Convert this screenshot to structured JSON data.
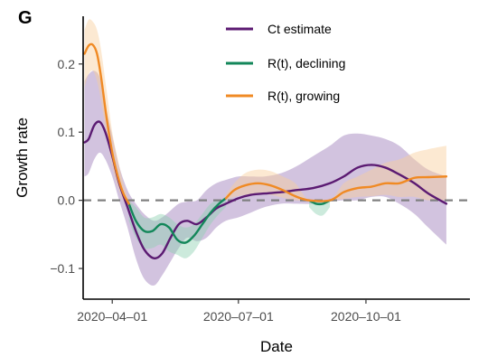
{
  "panel_label": "G",
  "chart_data": {
    "type": "line",
    "title": "",
    "xlabel": "Date",
    "ylabel": "Growth rate",
    "x_ticks": [
      "2020-04-01",
      "2020-07-01",
      "2020-10-01"
    ],
    "x_tick_labels": [
      "2020–04–01",
      "2020–07–01",
      "2020–10–01"
    ],
    "y_ticks": [
      -0.1,
      0.0,
      0.1,
      0.2
    ],
    "y_tick_labels": [
      "−0.1",
      "0.0",
      "0.1",
      "0.2"
    ],
    "xlim": [
      "2020-03-11",
      "2020-12-15"
    ],
    "ylim": [
      -0.145,
      0.27
    ],
    "reference_line": {
      "y": 0,
      "style": "dashed",
      "color": "#808080"
    },
    "grid": false,
    "legend_position": "top",
    "series": [
      {
        "name": "Ct estimate",
        "color": "#5b1a72",
        "band_color": "#9b7bb8",
        "x": [
          "2020-03-12",
          "2020-03-15",
          "2020-03-19",
          "2020-03-23",
          "2020-03-27",
          "2020-04-01",
          "2020-04-06",
          "2020-04-12",
          "2020-04-18",
          "2020-04-24",
          "2020-05-01",
          "2020-05-07",
          "2020-05-13",
          "2020-05-19",
          "2020-05-25",
          "2020-06-01",
          "2020-06-08",
          "2020-06-15",
          "2020-06-22",
          "2020-07-01",
          "2020-07-10",
          "2020-07-20",
          "2020-08-01",
          "2020-08-12",
          "2020-08-24",
          "2020-09-05",
          "2020-09-15",
          "2020-09-25",
          "2020-10-05",
          "2020-10-15",
          "2020-10-25",
          "2020-11-05",
          "2020-11-15",
          "2020-11-28"
        ],
        "y": [
          0.085,
          0.09,
          0.11,
          0.115,
          0.1,
          0.065,
          0.025,
          -0.01,
          -0.045,
          -0.072,
          -0.085,
          -0.078,
          -0.055,
          -0.035,
          -0.03,
          -0.035,
          -0.025,
          -0.012,
          -0.005,
          0.003,
          0.008,
          0.01,
          0.012,
          0.015,
          0.018,
          0.025,
          0.035,
          0.048,
          0.052,
          0.048,
          0.038,
          0.025,
          0.01,
          -0.005
        ],
        "lower": [
          0.035,
          0.04,
          0.06,
          0.07,
          0.06,
          0.035,
          0.0,
          -0.04,
          -0.085,
          -0.115,
          -0.125,
          -0.11,
          -0.09,
          -0.07,
          -0.055,
          -0.06,
          -0.055,
          -0.04,
          -0.03,
          -0.025,
          -0.018,
          -0.01,
          -0.005,
          -0.005,
          -0.005,
          -0.002,
          0.0,
          0.0,
          0.005,
          0.005,
          -0.005,
          -0.02,
          -0.04,
          -0.065
        ],
        "upper": [
          0.175,
          0.185,
          0.19,
          0.18,
          0.14,
          0.095,
          0.05,
          0.015,
          -0.005,
          -0.02,
          -0.03,
          -0.025,
          -0.015,
          -0.005,
          -0.002,
          0.0,
          0.015,
          0.025,
          0.03,
          0.035,
          0.035,
          0.035,
          0.04,
          0.05,
          0.065,
          0.08,
          0.095,
          0.098,
          0.095,
          0.09,
          0.08,
          0.06,
          0.045,
          0.035
        ]
      },
      {
        "name": "R(t), declining",
        "color": "#13875a",
        "band_color": "#8ed1b1",
        "x": [
          "2020-04-13",
          "2020-04-18",
          "2020-04-24",
          "2020-04-30",
          "2020-05-06",
          "2020-05-12",
          "2020-05-18",
          "2020-05-24",
          "2020-05-30",
          "2020-06-05",
          "2020-06-11",
          "2020-06-17",
          "2020-06-22",
          "2020-08-21",
          "2020-08-26",
          "2020-08-31",
          "2020-09-05"
        ],
        "y": [
          -0.005,
          -0.03,
          -0.045,
          -0.045,
          -0.035,
          -0.04,
          -0.058,
          -0.062,
          -0.052,
          -0.035,
          -0.018,
          -0.005,
          0.003,
          0.0,
          -0.005,
          -0.005,
          0.0
        ],
        "lower": [
          -0.03,
          -0.055,
          -0.07,
          -0.07,
          -0.065,
          -0.075,
          -0.08,
          -0.085,
          -0.075,
          -0.055,
          -0.035,
          -0.02,
          -0.01,
          -0.01,
          -0.02,
          -0.022,
          -0.01
        ],
        "upper": [
          0.0,
          -0.01,
          -0.025,
          -0.025,
          -0.02,
          -0.025,
          -0.035,
          -0.04,
          -0.035,
          -0.02,
          -0.005,
          0.0,
          0.005,
          0.0,
          0.0,
          0.0,
          0.0
        ]
      },
      {
        "name": "R(t), growing",
        "color": "#f08a24",
        "band_color": "#f9cf9b",
        "x": [
          "2020-03-12",
          "2020-03-15",
          "2020-03-18",
          "2020-03-21",
          "2020-03-24",
          "2020-03-28",
          "2020-04-01",
          "2020-04-05",
          "2020-04-09",
          "2020-04-13",
          "2020-06-22",
          "2020-06-28",
          "2020-07-06",
          "2020-07-15",
          "2020-07-24",
          "2020-08-02",
          "2020-08-11",
          "2020-08-21",
          "2020-09-05",
          "2020-09-15",
          "2020-09-25",
          "2020-10-05",
          "2020-10-15",
          "2020-10-25",
          "2020-11-05",
          "2020-11-15",
          "2020-11-28"
        ],
        "y": [
          0.215,
          0.227,
          0.228,
          0.215,
          0.18,
          0.12,
          0.07,
          0.035,
          0.01,
          -0.005,
          0.003,
          0.015,
          0.022,
          0.025,
          0.022,
          0.015,
          0.006,
          0.0,
          0.0,
          0.012,
          0.018,
          0.02,
          0.025,
          0.025,
          0.033,
          0.034,
          0.035
        ],
        "lower": [
          0.165,
          0.185,
          0.19,
          0.175,
          0.145,
          0.095,
          0.05,
          0.02,
          0.0,
          -0.01,
          0.0,
          0.005,
          0.008,
          0.01,
          0.008,
          0.004,
          0.0,
          0.0,
          0.0,
          0.002,
          0.005,
          0.006,
          0.008,
          0.005,
          0.005,
          0.0,
          0.0
        ],
        "upper": [
          0.25,
          0.265,
          0.262,
          0.25,
          0.22,
          0.16,
          0.1,
          0.06,
          0.025,
          0.0,
          0.008,
          0.025,
          0.04,
          0.045,
          0.043,
          0.035,
          0.025,
          0.0,
          0.0,
          0.025,
          0.035,
          0.045,
          0.055,
          0.06,
          0.07,
          0.075,
          0.08
        ]
      }
    ]
  }
}
